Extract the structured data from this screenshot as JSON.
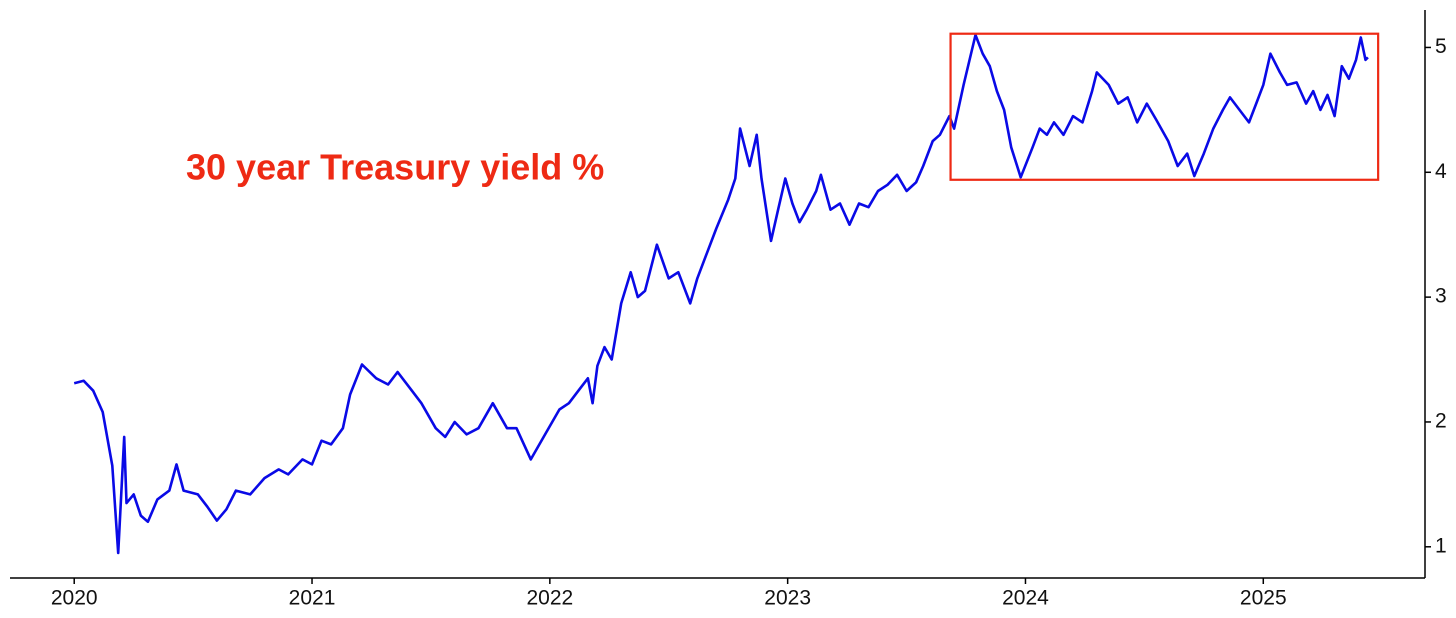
{
  "chart_data": {
    "type": "line",
    "annotation": "30 year Treasury yield %",
    "annotation_color": "#ee2a14",
    "highlight_box": {
      "x": [
        2023.685,
        2025.483
      ],
      "y": [
        3.94,
        5.11
      ],
      "color": "#ee2a14"
    },
    "x": [
      2020.0,
      2020.04,
      2020.08,
      2020.12,
      2020.16,
      2020.185,
      2020.21,
      2020.22,
      2020.25,
      2020.28,
      2020.31,
      2020.35,
      2020.4,
      2020.43,
      2020.46,
      2020.52,
      2020.56,
      2020.6,
      2020.64,
      2020.68,
      2020.74,
      2020.8,
      2020.86,
      2020.9,
      2020.96,
      2021.0,
      2021.04,
      2021.08,
      2021.13,
      2021.16,
      2021.21,
      2021.27,
      2021.32,
      2021.36,
      2021.42,
      2021.46,
      2021.52,
      2021.56,
      2021.6,
      2021.65,
      2021.7,
      2021.76,
      2021.82,
      2021.86,
      2021.92,
      2021.98,
      2022.04,
      2022.08,
      2022.12,
      2022.16,
      2022.18,
      2022.2,
      2022.23,
      2022.26,
      2022.3,
      2022.34,
      2022.37,
      2022.4,
      2022.45,
      2022.5,
      2022.54,
      2022.59,
      2022.62,
      2022.66,
      2022.7,
      2022.75,
      2022.78,
      2022.8,
      2022.84,
      2022.87,
      2022.89,
      2022.93,
      2022.96,
      2022.99,
      2023.02,
      2023.05,
      2023.08,
      2023.12,
      2023.14,
      2023.18,
      2023.22,
      2023.26,
      2023.3,
      2023.34,
      2023.38,
      2023.42,
      2023.46,
      2023.5,
      2023.54,
      2023.57,
      2023.61,
      2023.64,
      2023.68,
      2023.7,
      2023.74,
      2023.79,
      2023.82,
      2023.85,
      2023.88,
      2023.91,
      2023.94,
      2023.98,
      2024.03,
      2024.06,
      2024.09,
      2024.12,
      2024.16,
      2024.2,
      2024.24,
      2024.28,
      2024.3,
      2024.35,
      2024.39,
      2024.43,
      2024.47,
      2024.51,
      2024.55,
      2024.6,
      2024.64,
      2024.68,
      2024.71,
      2024.75,
      2024.79,
      2024.83,
      2024.86,
      2024.9,
      2024.94,
      2024.97,
      2025.0,
      2025.03,
      2025.07,
      2025.1,
      2025.14,
      2025.18,
      2025.21,
      2025.24,
      2025.27,
      2025.3,
      2025.33,
      2025.36,
      2025.39,
      2025.41,
      2025.43,
      2025.44
    ],
    "series": [
      {
        "name": "30 year Treasury yield",
        "color": "#0a0ae6",
        "values": [
          2.31,
          2.33,
          2.25,
          2.08,
          1.65,
          0.95,
          1.88,
          1.35,
          1.42,
          1.25,
          1.2,
          1.38,
          1.45,
          1.66,
          1.45,
          1.42,
          1.32,
          1.21,
          1.3,
          1.45,
          1.42,
          1.55,
          1.62,
          1.58,
          1.7,
          1.66,
          1.85,
          1.82,
          1.95,
          2.22,
          2.46,
          2.35,
          2.3,
          2.4,
          2.25,
          2.15,
          1.95,
          1.88,
          2.0,
          1.9,
          1.95,
          2.15,
          1.95,
          1.95,
          1.7,
          1.9,
          2.1,
          2.15,
          2.25,
          2.35,
          2.15,
          2.45,
          2.6,
          2.5,
          2.95,
          3.2,
          3.0,
          3.05,
          3.42,
          3.15,
          3.2,
          2.95,
          3.15,
          3.35,
          3.55,
          3.78,
          3.95,
          4.35,
          4.05,
          4.3,
          3.95,
          3.45,
          3.7,
          3.95,
          3.75,
          3.6,
          3.7,
          3.85,
          3.98,
          3.7,
          3.75,
          3.58,
          3.75,
          3.72,
          3.85,
          3.9,
          3.98,
          3.85,
          3.92,
          4.05,
          4.25,
          4.3,
          4.45,
          4.35,
          4.7,
          5.1,
          4.95,
          4.85,
          4.65,
          4.5,
          4.2,
          3.96,
          4.2,
          4.35,
          4.3,
          4.4,
          4.3,
          4.45,
          4.4,
          4.65,
          4.8,
          4.7,
          4.55,
          4.6,
          4.4,
          4.55,
          4.42,
          4.25,
          4.05,
          4.15,
          3.97,
          4.15,
          4.35,
          4.5,
          4.6,
          4.5,
          4.4,
          4.55,
          4.7,
          4.95,
          4.8,
          4.7,
          4.72,
          4.55,
          4.65,
          4.5,
          4.62,
          4.45,
          4.85,
          4.75,
          4.9,
          5.08,
          4.9,
          4.92
        ]
      }
    ],
    "xlim": [
      2019.73,
      2025.68
    ],
    "xticks": [
      2020,
      2021,
      2022,
      2023,
      2024,
      2025
    ],
    "ylim": [
      0.75,
      5.3
    ],
    "yticks": [
      1,
      2,
      3,
      4,
      5
    ],
    "y_axis_side": "right",
    "grid": false
  }
}
